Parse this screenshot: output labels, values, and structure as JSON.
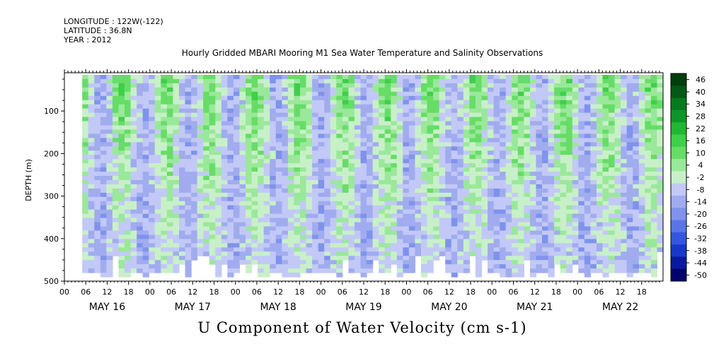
{
  "header": {
    "longitude": "LONGITUDE : 122W(-122)",
    "latitude": "LATITUDE : 36.8N",
    "year": "YEAR : 2012"
  },
  "chart_data": {
    "type": "heatmap",
    "title": "Hourly Gridded MBARI Mooring M1 Sea Water Temperature and Salinity Observations",
    "xlabel": "U Component of Water Velocity (cm s-1)",
    "ylabel": "DEPTH (m)",
    "y_ticks": [
      100,
      200,
      300,
      400,
      500
    ],
    "y_range": [
      10,
      500
    ],
    "y_inverted": true,
    "x_hour_ticks": [
      "00",
      "06",
      "12",
      "18",
      "00",
      "06",
      "12",
      "18",
      "00",
      "06",
      "12",
      "18",
      "00",
      "06",
      "12",
      "18",
      "00",
      "06",
      "12",
      "18",
      "00",
      "06",
      "12",
      "18",
      "00",
      "06",
      "12",
      "18"
    ],
    "x_date_labels": [
      "MAY 16",
      "MAY 17",
      "MAY 18",
      "MAY 19",
      "MAY 20",
      "MAY 21",
      "MAY 22"
    ],
    "x_range_hours": [
      0,
      168
    ],
    "data_start_hour": 5,
    "colorbar": {
      "levels": [
        -50,
        -44,
        -38,
        -32,
        -26,
        -20,
        -14,
        -8,
        -2,
        4,
        10,
        16,
        22,
        28,
        34,
        40,
        46
      ],
      "labels": [
        "46",
        "40",
        "34",
        "28",
        "22",
        "16",
        "10",
        "4",
        "-2",
        "-8",
        "-14",
        "-20",
        "-26",
        "-32",
        "-38",
        "-44",
        "-50"
      ],
      "negative_colors": [
        "#02026a",
        "#0a1a9e",
        "#1838c8",
        "#3556de",
        "#5a76e6",
        "#7f93ec",
        "#a1acef",
        "#c2c9f6"
      ],
      "positive_colors": [
        "#c8f0c8",
        "#9ae89a",
        "#66dd66",
        "#3fcf4a",
        "#21b633",
        "#0e9628",
        "#057a1e",
        "#035916",
        "#023d0e"
      ]
    }
  }
}
